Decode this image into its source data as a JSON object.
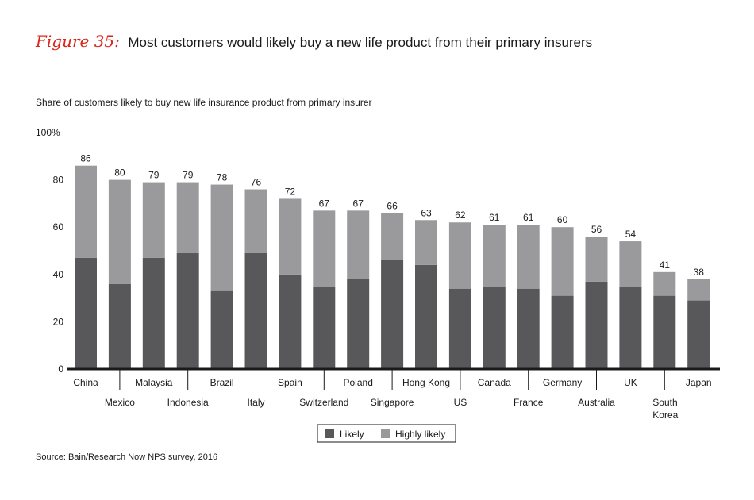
{
  "figure": {
    "label": "Figure 35:",
    "title": "Most customers would likely buy a new life product from their primary insurers"
  },
  "source": "Source: Bain/Research Now NPS survey, 2016",
  "colors": {
    "likely": "#58585a",
    "highly_likely": "#9a9a9c",
    "accent": "#d9261c",
    "axis": "#1a1a1a"
  },
  "chart_data": {
    "type": "bar",
    "stacked": true,
    "title": "Share of customers likely to buy new life insurance product from primary insurer",
    "xlabel": "",
    "ylabel": "",
    "ylim": [
      0,
      100
    ],
    "yticks": [
      0,
      20,
      40,
      60,
      80
    ],
    "ytick_top_label": "100%",
    "categories": [
      "China",
      "Mexico",
      "Malaysia",
      "Indonesia",
      "Brazil",
      "Italy",
      "Spain",
      "Switzerland",
      "Poland",
      "Singapore",
      "Hong Kong",
      "US",
      "Canada",
      "France",
      "Germany",
      "Australia",
      "UK",
      "South Korea",
      "Japan"
    ],
    "category_lines": [
      [
        "China"
      ],
      [
        "Mexico"
      ],
      [
        "Malaysia"
      ],
      [
        "Indonesia"
      ],
      [
        "Brazil"
      ],
      [
        "Italy"
      ],
      [
        "Spain"
      ],
      [
        "Switzerland"
      ],
      [
        "Poland"
      ],
      [
        "Singapore"
      ],
      [
        "Hong Kong"
      ],
      [
        "US"
      ],
      [
        "Canada"
      ],
      [
        "France"
      ],
      [
        "Germany"
      ],
      [
        "Australia"
      ],
      [
        "UK"
      ],
      [
        "South",
        "Korea"
      ],
      [
        "Japan"
      ]
    ],
    "series": [
      {
        "name": "Likely",
        "values": [
          47,
          36,
          47,
          49,
          33,
          49,
          40,
          35,
          38,
          46,
          44,
          34,
          35,
          34,
          31,
          37,
          35,
          31,
          29
        ]
      },
      {
        "name": "Highly likely",
        "values": [
          39,
          44,
          32,
          30,
          45,
          27,
          32,
          32,
          29,
          20,
          19,
          28,
          26,
          27,
          29,
          19,
          19,
          10,
          9
        ]
      }
    ],
    "totals": [
      86,
      80,
      79,
      79,
      78,
      76,
      72,
      67,
      67,
      66,
      63,
      62,
      61,
      61,
      60,
      56,
      54,
      41,
      38
    ],
    "legend": [
      "Likely",
      "Highly likely"
    ],
    "legend_position": "bottom-center"
  }
}
